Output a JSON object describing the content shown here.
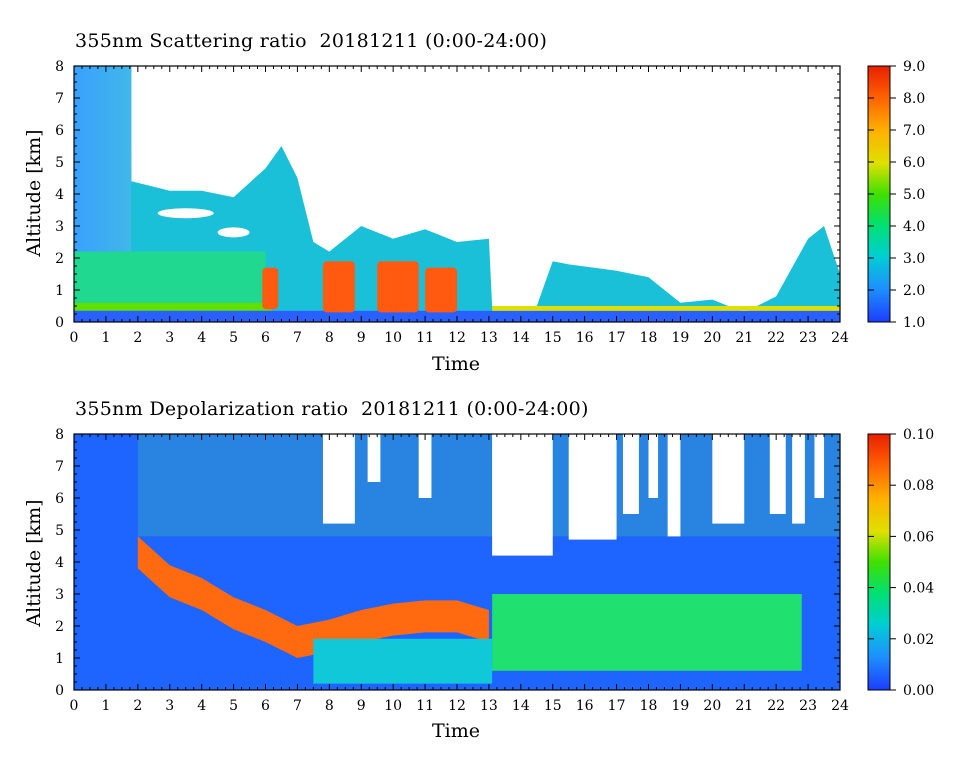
{
  "charts": [
    {
      "title": "355nm Scattering ratio  20181211 (0:00-24:00)",
      "xlabel": "Time",
      "ylabel": "Altitude [km]",
      "x_ticks": [
        "0",
        "1",
        "2",
        "3",
        "4",
        "5",
        "6",
        "7",
        "8",
        "9",
        "10",
        "11",
        "12",
        "13",
        "14",
        "15",
        "16",
        "17",
        "18",
        "19",
        "20",
        "21",
        "22",
        "23",
        "24"
      ],
      "y_ticks": [
        "0",
        "1",
        "2",
        "3",
        "4",
        "5",
        "6",
        "7",
        "8"
      ],
      "colorbar_ticks": [
        "1.0",
        "2.0",
        "3.0",
        "4.0",
        "5.0",
        "6.0",
        "7.0",
        "8.0",
        "9.0"
      ]
    },
    {
      "title": "355nm Depolarization ratio  20181211 (0:00-24:00)",
      "xlabel": "Time",
      "ylabel": "Altitude [km]",
      "x_ticks": [
        "0",
        "1",
        "2",
        "3",
        "4",
        "5",
        "6",
        "7",
        "8",
        "9",
        "10",
        "11",
        "12",
        "13",
        "14",
        "15",
        "16",
        "17",
        "18",
        "19",
        "20",
        "21",
        "22",
        "23",
        "24"
      ],
      "y_ticks": [
        "0",
        "1",
        "2",
        "3",
        "4",
        "5",
        "6",
        "7",
        "8"
      ],
      "colorbar_ticks": [
        "0.00",
        "0.02",
        "0.04",
        "0.06",
        "0.08",
        "0.10"
      ]
    }
  ],
  "chart_data": [
    {
      "type": "heatmap",
      "title": "355nm Scattering ratio  20181211 (0:00-24:00)",
      "xlabel": "Time",
      "ylabel": "Altitude [km]",
      "xlim": [
        0,
        24
      ],
      "ylim": [
        0,
        8
      ],
      "color_range": [
        1.0,
        9.0
      ],
      "colorbar": [
        "#1a3cff",
        "#1e90ff",
        "#00d0d0",
        "#00e070",
        "#40e000",
        "#e0e000",
        "#ffb000",
        "#ff6000",
        "#e82000"
      ],
      "cloud_top_profile_km": [
        [
          0,
          8.0
        ],
        [
          1.75,
          8.0
        ],
        [
          1.8,
          4.4
        ],
        [
          3,
          4.1
        ],
        [
          4,
          4.1
        ],
        [
          5,
          3.9
        ],
        [
          6,
          4.8
        ],
        [
          6.5,
          5.5
        ],
        [
          7,
          4.5
        ],
        [
          7.5,
          2.5
        ],
        [
          8,
          2.2
        ],
        [
          9,
          3.0
        ],
        [
          10,
          2.6
        ],
        [
          11,
          2.9
        ],
        [
          12,
          2.5
        ],
        [
          13,
          2.6
        ],
        [
          13.1,
          0.5
        ],
        [
          14.5,
          0.5
        ],
        [
          15,
          1.9
        ],
        [
          15.5,
          1.8
        ],
        [
          17,
          1.6
        ],
        [
          18,
          1.4
        ],
        [
          19,
          0.6
        ],
        [
          20,
          0.7
        ],
        [
          21,
          0.3
        ],
        [
          22,
          0.8
        ],
        [
          23,
          2.6
        ],
        [
          23.5,
          3.0
        ],
        [
          24,
          1.5
        ]
      ],
      "notes": "Colored region below cloud top; white = no data / out of range"
    },
    {
      "type": "heatmap",
      "title": "355nm Depolarization ratio  20181211 (0:00-24:00)",
      "xlabel": "Time",
      "ylabel": "Altitude [km]",
      "xlim": [
        0,
        24
      ],
      "ylim": [
        0,
        8
      ],
      "color_range": [
        0.0,
        0.1
      ],
      "colorbar": [
        "#1a3cff",
        "#1e90ff",
        "#00d0d0",
        "#00e070",
        "#40e000",
        "#e0e000",
        "#ffb000",
        "#ff6000",
        "#e82000"
      ],
      "high_depol_band_km": [
        [
          2,
          4.8
        ],
        [
          3,
          3.9
        ],
        [
          4,
          3.5
        ],
        [
          5,
          2.9
        ],
        [
          6,
          2.5
        ],
        [
          7,
          2.0
        ],
        [
          8,
          2.2
        ],
        [
          9,
          2.5
        ],
        [
          10,
          2.7
        ],
        [
          11,
          2.8
        ],
        [
          12,
          2.8
        ],
        [
          13,
          2.5
        ]
      ],
      "notes": "Blue background; red/orange band of depolarization above clouds; green region 13-23 h between 0.5-3 km"
    }
  ]
}
